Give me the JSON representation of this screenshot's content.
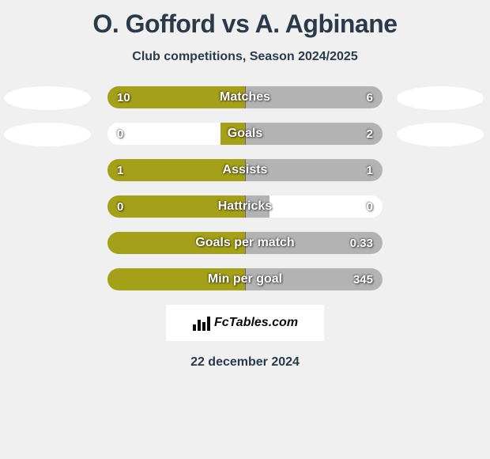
{
  "title": "O. Gofford vs A. Agbinane",
  "subtitle": "Club competitions, Season 2024/2025",
  "date": "22 december 2024",
  "logo_text": "FcTables.com",
  "colors": {
    "left_fill": "#a5a019",
    "right_fill": "#b3b3b3",
    "empty": "#ffffff",
    "background": "#f0f0f0",
    "text_primary": "#2b3a4a"
  },
  "ovals": {
    "left_count": 2,
    "right_count": 2
  },
  "bars": [
    {
      "label": "Matches",
      "left_value": "10",
      "right_value": "6",
      "left_pct": 100,
      "right_pct": 100
    },
    {
      "label": "Goals",
      "left_value": "0",
      "right_value": "2",
      "left_pct": 18,
      "right_pct": 100
    },
    {
      "label": "Assists",
      "left_value": "1",
      "right_value": "1",
      "left_pct": 100,
      "right_pct": 100
    },
    {
      "label": "Hattricks",
      "left_value": "0",
      "right_value": "0",
      "left_pct": 100,
      "right_pct": 18
    },
    {
      "label": "Goals per match",
      "left_value": "",
      "right_value": "0.33",
      "left_pct": 100,
      "right_pct": 100
    },
    {
      "label": "Min per goal",
      "left_value": "",
      "right_value": "345",
      "left_pct": 100,
      "right_pct": 100
    }
  ]
}
